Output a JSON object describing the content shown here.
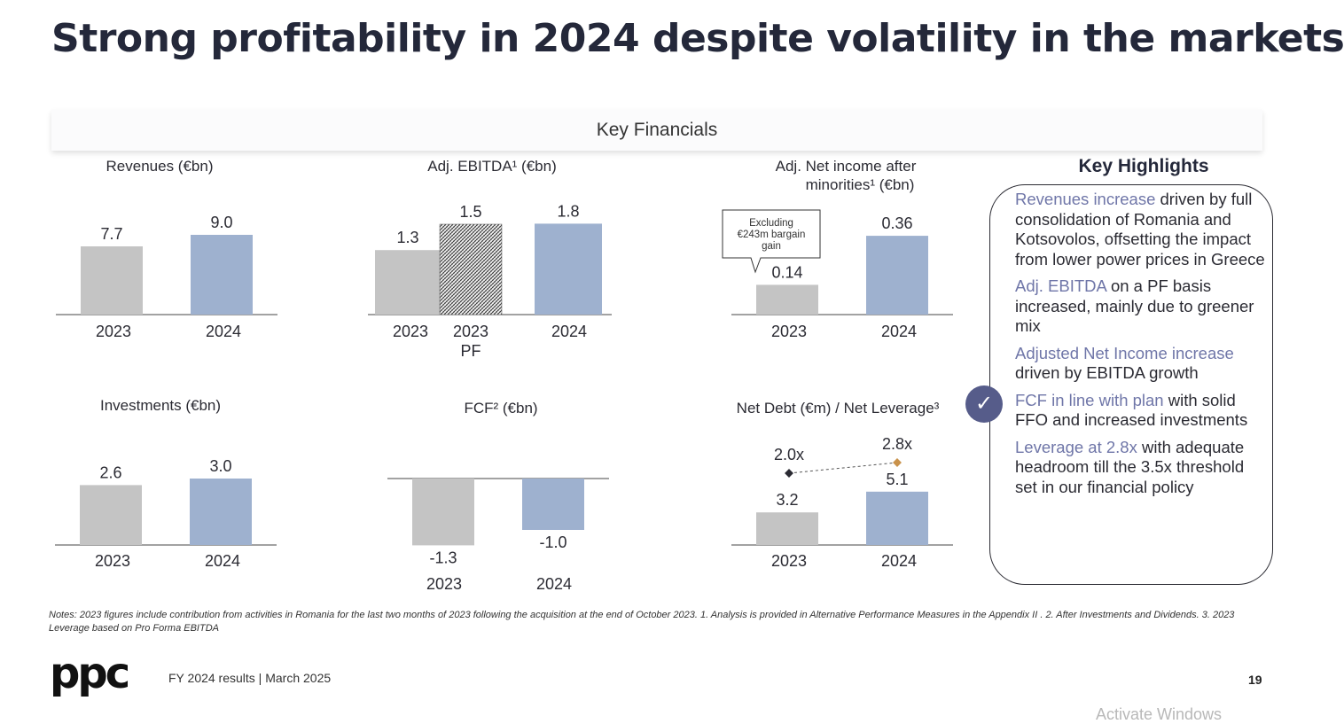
{
  "title": "Strong profitability in 2024 despite volatility in the markets",
  "key_financials_label": "Key Financials",
  "colors": {
    "grey": "#c4c4c4",
    "blue": "#9eb1cf",
    "accent": "#565c8a",
    "highlight": "#6f76a8"
  },
  "chart_data": [
    {
      "type": "bar",
      "title": "Revenues (€bn)",
      "categories": [
        "2023",
        "2024"
      ],
      "values": [
        7.7,
        9.0
      ],
      "labels": [
        "7.7",
        "9.0"
      ]
    },
    {
      "type": "bar",
      "title": "Adj. EBITDA¹ (€bn)",
      "categories": [
        "2023",
        "2023 PF",
        "2024"
      ],
      "values": [
        1.3,
        1.5,
        1.8
      ],
      "labels": [
        "1.3",
        "1.5",
        "1.8"
      ]
    },
    {
      "type": "bar",
      "title_lines": [
        "Adj. Net income after",
        "minorities¹ (€bn)"
      ],
      "categories": [
        "2023",
        "2024"
      ],
      "values": [
        0.14,
        0.36
      ],
      "labels": [
        "0.14",
        "0.36"
      ],
      "annotation_lines": [
        "Excluding",
        "€243m bargain",
        "gain"
      ]
    },
    {
      "type": "bar",
      "title": "Investments (€bn)",
      "categories": [
        "2023",
        "2024"
      ],
      "values": [
        2.6,
        3.0
      ],
      "labels": [
        "2.6",
        "3.0"
      ]
    },
    {
      "type": "bar",
      "title": "FCF² (€bn)",
      "categories": [
        "2023",
        "2024"
      ],
      "values": [
        -1.3,
        -1.0
      ],
      "labels": [
        "-1.3",
        "-1.0"
      ]
    },
    {
      "type": "bar",
      "title": "Net Debt (€m) / Net Leverage³",
      "categories": [
        "2023",
        "2024"
      ],
      "values": [
        3.2,
        5.1
      ],
      "labels": [
        "3.2",
        "5.1"
      ],
      "leverage": [
        2.0,
        2.8
      ],
      "leverage_labels": [
        "2.0x",
        "2.8x"
      ]
    }
  ],
  "key_highlights": {
    "title": "Key Highlights",
    "items": [
      {
        "highlight": "Revenues increase",
        "text": " driven by full consolidation of Romania and Kotsovolos, offsetting the impact from lower power prices in Greece"
      },
      {
        "highlight": "Adj. EBITDA",
        "text": " on a PF basis increased, mainly due to greener mix"
      },
      {
        "highlight": "Adjusted Net Income increase",
        "text": " driven by EBITDA growth"
      },
      {
        "highlight": "FCF in line with plan",
        "text": " with solid FFO and increased investments"
      },
      {
        "highlight": "Leverage at 2.8x",
        "text": " with adequate headroom till the 3.5x threshold set in our financial policy"
      }
    ]
  },
  "check_icon": "✓",
  "notes": "Notes: 2023 figures include contribution from activities in Romania for the last two months of 2023 following the acquisition at the end of October 2023. 1. Analysis is provided in Alternative Performance Measures in the Appendix II . 2. After Investments and Dividends. 3. 2023 Leverage based on Pro Forma EBITDA",
  "logo_text": "ppc",
  "footer": "FY 2024 results | March 2025",
  "page_number": "19",
  "watermark": "Activate Windows"
}
